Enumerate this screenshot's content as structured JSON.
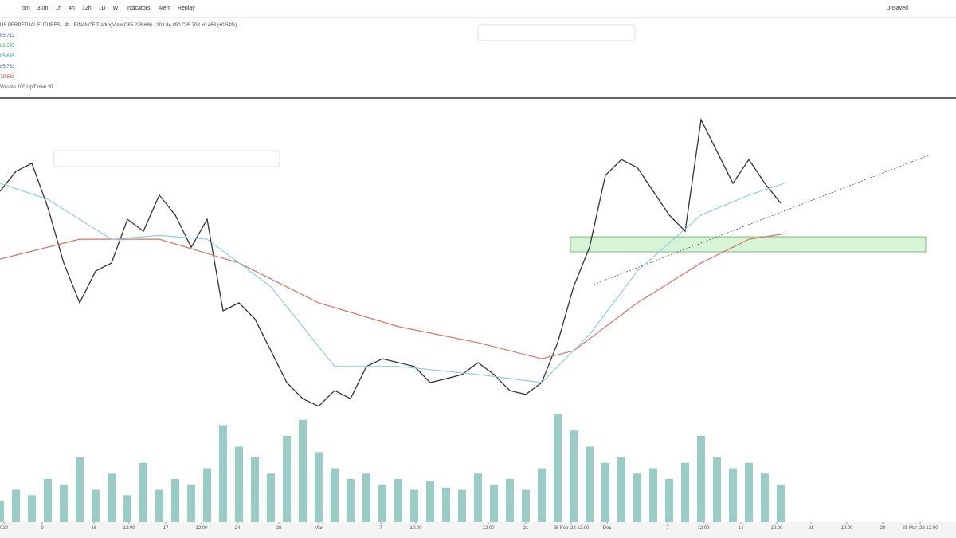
{
  "toolbar": {
    "intervals": [
      "5m",
      "30m",
      "1h",
      "4h",
      "12h",
      "1D",
      "W"
    ],
    "indicators": "Indicators",
    "alert": "Alert",
    "replay": "Replay",
    "layout": "Unsaved"
  },
  "legend": {
    "symbol": "US PERPETUAL FUTURES · 4h · BINANCE",
    "source": "TradingView",
    "ohlc": "O85.228 H86.120 L84.890 C85.708 +0.463 (+0.54%)",
    "indicator_values": [
      "85.712",
      "86.595",
      "85.635",
      "85.763",
      "79.533"
    ],
    "volume": "Volume 100 Up/Down 20"
  },
  "chart_data": {
    "type": "line",
    "grid": false,
    "x": [
      0,
      20,
      40,
      60,
      80,
      100,
      120,
      140,
      160,
      180,
      200,
      220,
      240,
      260,
      280,
      300,
      320,
      340,
      360,
      380,
      400,
      420,
      440,
      460,
      480,
      500,
      520,
      540,
      560,
      580,
      600,
      620,
      640,
      660,
      680,
      700,
      720,
      740,
      760,
      780,
      800,
      820,
      840,
      860,
      880,
      900,
      920,
      940,
      960,
      980
    ],
    "xlim": [
      0,
      1200
    ],
    "ylim": [
      0,
      100
    ],
    "y2lim": [
      0,
      100
    ],
    "xticks": [
      {
        "value": 5,
        "label": "022"
      },
      {
        "value": 53,
        "label": "9"
      },
      {
        "value": 118,
        "label": "16"
      },
      {
        "value": 162,
        "label": "12:00"
      },
      {
        "value": 208,
        "label": "17"
      },
      {
        "value": 253,
        "label": "12:00"
      },
      {
        "value": 298,
        "label": "24"
      },
      {
        "value": 350,
        "label": "28"
      },
      {
        "value": 400,
        "label": "Mar"
      },
      {
        "value": 478,
        "label": "7"
      },
      {
        "value": 522,
        "label": "12:00"
      },
      {
        "value": 613,
        "label": "12:00"
      },
      {
        "value": 660,
        "label": "21"
      },
      {
        "value": 717,
        "label": "25 Feb '22 12:00"
      },
      {
        "value": 762,
        "label": "Dec"
      },
      {
        "value": 838,
        "label": "7"
      },
      {
        "value": 883,
        "label": "12:00"
      },
      {
        "value": 930,
        "label": "14"
      },
      {
        "value": 975,
        "label": "12:00"
      },
      {
        "value": 1018,
        "label": "21"
      },
      {
        "value": 1063,
        "label": "12:00"
      },
      {
        "value": 1108,
        "label": "28"
      },
      {
        "value": 1155,
        "label": "31 Mar '22 12:00"
      }
    ],
    "series": [
      {
        "name": "Price",
        "color": "#333333",
        "values": [
          78.0,
          82.7,
          84.6,
          74.2,
          61.1,
          51.7,
          59.2,
          61.1,
          71.4,
          68.6,
          77.1,
          72.4,
          64.8,
          71.4,
          49.8,
          51.7,
          47.9,
          40.4,
          32.9,
          29.1,
          27.3,
          31.0,
          29.1,
          36.7,
          38.5,
          37.6,
          36.7,
          32.9,
          33.8,
          34.8,
          37.6,
          34.8,
          31.0,
          30.1,
          32.9,
          42.3,
          55.5,
          64.8,
          81.8,
          85.5,
          83.6,
          78.0,
          72.4,
          68.6,
          94.9,
          87.4,
          79.9,
          85.5,
          79.9,
          75.2
        ]
      },
      {
        "name": "Volume",
        "color": "#7fbfb5",
        "axis": "y2",
        "values": [
          20,
          30,
          25,
          40,
          35,
          60,
          30,
          45,
          25,
          55,
          30,
          40,
          35,
          50,
          90,
          70,
          60,
          45,
          80,
          95,
          65,
          50,
          40,
          45,
          35,
          40,
          30,
          38,
          32,
          30,
          45,
          35,
          40,
          30,
          50,
          100,
          85,
          70,
          55,
          60,
          45,
          50,
          40,
          55,
          80,
          60,
          50,
          55,
          45,
          35
        ]
      }
    ],
    "moving_averages": [
      {
        "name": "MA 200",
        "color": "#d9735f",
        "x": [
          0,
          100,
          200,
          300,
          400,
          500,
          600,
          680,
          720,
          800,
          880,
          940,
          985
        ],
        "values": [
          62.0,
          66.7,
          66.7,
          61.1,
          51.7,
          46.1,
          42.3,
          38.5,
          40.4,
          51.7,
          61.1,
          66.7,
          68.0
        ]
      },
      {
        "name": "MA 50",
        "color": "#8fcfe0",
        "x": [
          0,
          60,
          140,
          200,
          260,
          340,
          420,
          500,
          600,
          680,
          740,
          800,
          880,
          940,
          985
        ],
        "values": [
          79.9,
          76.1,
          66.7,
          67.6,
          66.7,
          55.5,
          36.7,
          36.7,
          34.8,
          32.9,
          44.2,
          59.2,
          72.4,
          77.1,
          79.9
        ]
      }
    ]
  }
}
